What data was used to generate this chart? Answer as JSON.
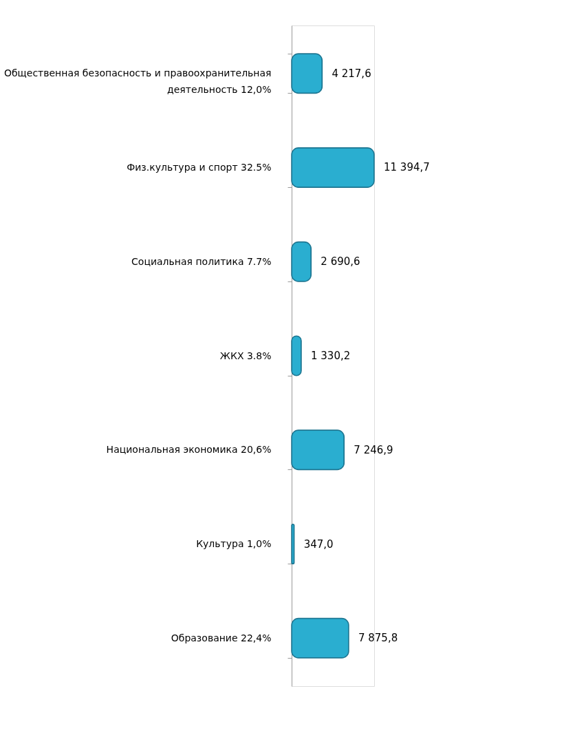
{
  "chart_data": {
    "type": "bar",
    "orientation": "horizontal",
    "categories": [
      "Общественная безопасность и правоохранительная деятельность 12,0%",
      "Физ.культура и спорт 32.5%",
      "Социальная политика 7.7%",
      "ЖКХ 3.8%",
      "Национальная экономика 20,6%",
      "Культура 1,0%",
      "Образование 22,4%"
    ],
    "values": [
      4217.6,
      11394.7,
      2690.6,
      1330.2,
      7246.9,
      347.0,
      7875.8
    ],
    "value_labels": [
      "4 217,6",
      "11 394,7",
      "2 690,6",
      "1 330,2",
      "7 246,9",
      "347,0",
      "7 875,8"
    ],
    "color": "#2aaed0"
  }
}
